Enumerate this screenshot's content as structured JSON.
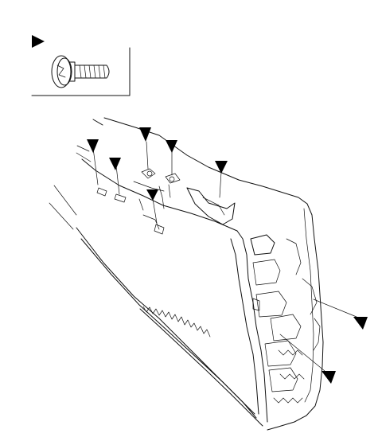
{
  "figure": {
    "legend": {
      "symbol": "arrow-marker",
      "part": "screw-icon"
    },
    "markers": [
      {
        "id": "m1"
      },
      {
        "id": "m2"
      },
      {
        "id": "m3"
      },
      {
        "id": "m4"
      },
      {
        "id": "m5"
      },
      {
        "id": "m6"
      },
      {
        "id": "m7"
      },
      {
        "id": "m8"
      }
    ]
  }
}
